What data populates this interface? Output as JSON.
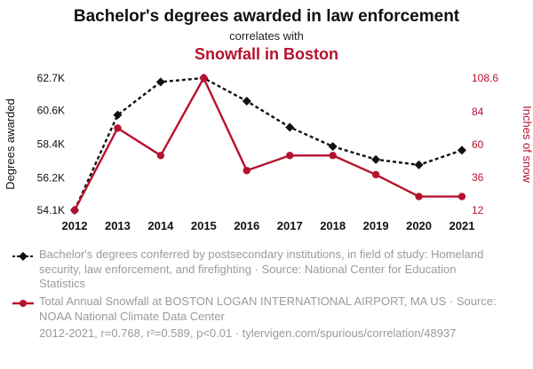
{
  "header": {
    "title": "Bachelor's degrees awarded in law enforcement",
    "subtitle": "correlates with",
    "secondary_title": "Snowfall in Boston"
  },
  "colors": {
    "accent": "#b5122e",
    "ink": "#111111",
    "caption_gray": "#9b9b9b"
  },
  "chart_data": {
    "type": "line",
    "x": [
      "2012",
      "2013",
      "2014",
      "2015",
      "2016",
      "2017",
      "2018",
      "2019",
      "2020",
      "2021"
    ],
    "series": [
      {
        "name": "Bachelor's degrees conferred: Homeland security, law enforcement, and firefighting",
        "axis": "left",
        "color": "#111111",
        "marker": "diamond",
        "dash": true,
        "values": [
          54100,
          60300,
          62450,
          62700,
          61200,
          59500,
          58250,
          57400,
          57050,
          58000
        ]
      },
      {
        "name": "Total Annual Snowfall at Boston Logan International Airport",
        "axis": "right",
        "color": "#b5122e",
        "marker": "circle",
        "dash": false,
        "values": [
          12,
          72,
          52,
          108.6,
          41,
          52,
          52,
          38,
          22,
          22
        ]
      }
    ],
    "left_axis": {
      "label": "Degrees awarded",
      "min": 54100,
      "max": 62700,
      "tick_values": [
        54100,
        56200,
        58400,
        60600,
        62700
      ],
      "ticks": [
        "54.1K",
        "56.2K",
        "58.4K",
        "60.6K",
        "62.7K"
      ]
    },
    "right_axis": {
      "label": "Inches of snow",
      "min": 12,
      "max": 108.6,
      "tick_values": [
        12,
        36,
        60,
        84,
        108.6
      ],
      "ticks": [
        "12",
        "36",
        "60",
        "84",
        "108.6"
      ]
    },
    "grid": false,
    "legend_position": "bottom"
  },
  "captions": [
    {
      "icon": "diamond-line",
      "text": "Bachelor's degrees conferred by postsecondary institutions, in field of study: Homeland security, law enforcement, and firefighting · Source: National Center for Education Statistics"
    },
    {
      "icon": "circle-line",
      "text": "Total Annual Snowfall at BOSTON LOGAN INTERNATIONAL AIRPORT, MA US · Source: NOAA National Climate Data Center"
    },
    {
      "icon": "none",
      "text": "2012-2021, r=0.768, r²=0.589, p<0.01 · tylervigen.com/spurious/correlation/48937"
    }
  ]
}
